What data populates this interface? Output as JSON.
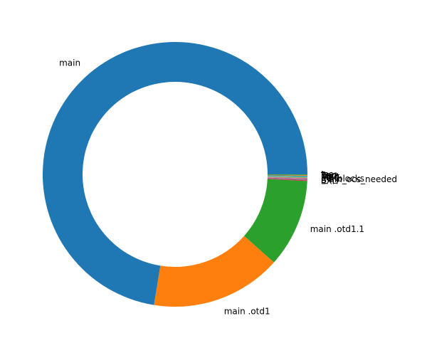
{
  "chart_data": {
    "type": "pie",
    "title": "",
    "donut": true,
    "start_angle_deg": 0,
    "direction": "counterclockwise",
    "slices": [
      {
        "label": "main",
        "value": 72.6,
        "color": "#1f77b4"
      },
      {
        "label": "main .otd1",
        "value": 16.0,
        "color": "#ff7f0e"
      },
      {
        "label": "main .otd1.1",
        "value": 10.8,
        "color": "#2ca02c"
      },
      {
        "label": "EXIT",
        "value": 0.08,
        "color": "#d62728"
      },
      {
        "label": "B",
        "value": 0.08,
        "color": "#9467bd"
      },
      {
        "label": "main_ocs_needed",
        "value": 0.08,
        "color": "#8c564b"
      },
      {
        "label": "l_3_blocks",
        "value": 0.08,
        "color": "#e377c2"
      },
      {
        "label": "Edit",
        "value": 0.08,
        "color": "#7f7f7f"
      },
      {
        "label": "Mac",
        "value": 0.08,
        "color": "#bcbd22"
      },
      {
        "label": "limit",
        "value": 0.08,
        "color": "#17becf"
      },
      {
        "label": "Text",
        "value": 0.08,
        "color": "#1f77b4"
      },
      {
        "label": "Pan",
        "value": 0.08,
        "color": "#ff7f0e"
      },
      {
        "label": "Ins",
        "value": 0.08,
        "color": "#2ca02c"
      }
    ]
  }
}
